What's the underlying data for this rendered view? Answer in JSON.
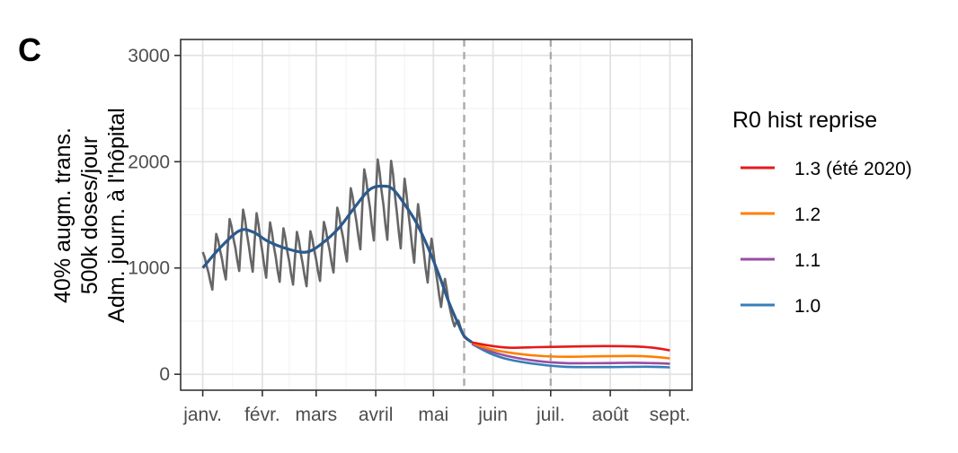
{
  "panel_label": "C",
  "y_axis_lines": [
    "40% augm. trans.",
    "500k doses/jour",
    "Adm. journ. à l'hôpital"
  ],
  "legend": {
    "title": "R0 hist reprise",
    "entries": [
      {
        "label": "1.3 (été 2020)",
        "color": "#e41a1c"
      },
      {
        "label": "1.2",
        "color": "#ff7f00"
      },
      {
        "label": "1.1",
        "color": "#984ea3"
      },
      {
        "label": "1.0",
        "color": "#377eb8"
      }
    ]
  },
  "chart_data": {
    "type": "line",
    "x_unit": "day_of_2021",
    "xlim": [
      1,
      244
    ],
    "ylim": [
      -150,
      3150
    ],
    "y_ticks": [
      0,
      1000,
      2000,
      3000
    ],
    "y_tick_labels": [
      "0",
      "1000",
      "2000",
      "3000"
    ],
    "x_ticks": [
      1,
      32,
      60,
      91,
      121,
      152,
      182,
      213,
      244
    ],
    "x_tick_labels": [
      "janv.",
      "févr.",
      "mars",
      "avril",
      "mai",
      "juin",
      "juil.",
      "août",
      "sept."
    ],
    "x_minor_ticks": [
      16.5,
      46,
      75.5,
      106,
      136.5,
      167,
      197.5,
      228.5
    ],
    "vlines": [
      137,
      182
    ],
    "grid": true,
    "legend_position": "right",
    "observed": {
      "color": "#666666",
      "weekly_pattern": [
        1.15,
        1.08,
        0.98,
        0.9,
        0.8,
        0.72,
        0.95
      ],
      "smooth_points": [
        [
          1,
          1000
        ],
        [
          10,
          1190
        ],
        [
          20,
          1350
        ],
        [
          27,
          1340
        ],
        [
          35,
          1250
        ],
        [
          45,
          1180
        ],
        [
          55,
          1150
        ],
        [
          63,
          1230
        ],
        [
          72,
          1380
        ],
        [
          80,
          1570
        ],
        [
          88,
          1740
        ],
        [
          95,
          1770
        ],
        [
          100,
          1740
        ],
        [
          106,
          1600
        ],
        [
          112,
          1430
        ],
        [
          118,
          1200
        ],
        [
          124,
          930
        ],
        [
          129,
          680
        ],
        [
          134,
          470
        ],
        [
          137,
          360
        ],
        [
          141,
          300
        ]
      ]
    },
    "smooth_fit": {
      "color": "#2c5a8c",
      "points": [
        [
          1,
          1000
        ],
        [
          10,
          1190
        ],
        [
          20,
          1350
        ],
        [
          27,
          1340
        ],
        [
          35,
          1250
        ],
        [
          45,
          1180
        ],
        [
          55,
          1150
        ],
        [
          63,
          1230
        ],
        [
          72,
          1380
        ],
        [
          80,
          1570
        ],
        [
          88,
          1740
        ],
        [
          95,
          1770
        ],
        [
          100,
          1740
        ],
        [
          106,
          1600
        ],
        [
          112,
          1430
        ],
        [
          118,
          1200
        ],
        [
          124,
          930
        ],
        [
          129,
          680
        ],
        [
          134,
          470
        ],
        [
          137,
          360
        ],
        [
          141,
          300
        ]
      ]
    },
    "series": [
      {
        "name": "1.3 (été 2020)",
        "color": "#e41a1c",
        "points": [
          [
            141,
            300
          ],
          [
            150,
            270
          ],
          [
            160,
            250
          ],
          [
            175,
            255
          ],
          [
            190,
            260
          ],
          [
            210,
            265
          ],
          [
            225,
            262
          ],
          [
            235,
            250
          ],
          [
            244,
            225
          ]
        ]
      },
      {
        "name": "1.2",
        "color": "#ff7f00",
        "points": [
          [
            141,
            295
          ],
          [
            150,
            240
          ],
          [
            160,
            205
          ],
          [
            175,
            175
          ],
          [
            190,
            165
          ],
          [
            210,
            170
          ],
          [
            225,
            172
          ],
          [
            235,
            165
          ],
          [
            244,
            150
          ]
        ]
      },
      {
        "name": "1.1",
        "color": "#984ea3",
        "points": [
          [
            141,
            290
          ],
          [
            150,
            220
          ],
          [
            160,
            170
          ],
          [
            175,
            125
          ],
          [
            190,
            105
          ],
          [
            210,
            105
          ],
          [
            225,
            108
          ],
          [
            235,
            105
          ],
          [
            244,
            100
          ]
        ]
      },
      {
        "name": "1.0",
        "color": "#377eb8",
        "points": [
          [
            141,
            285
          ],
          [
            150,
            200
          ],
          [
            160,
            140
          ],
          [
            175,
            95
          ],
          [
            190,
            70
          ],
          [
            210,
            68
          ],
          [
            225,
            70
          ],
          [
            235,
            70
          ],
          [
            244,
            65
          ]
        ]
      }
    ]
  }
}
